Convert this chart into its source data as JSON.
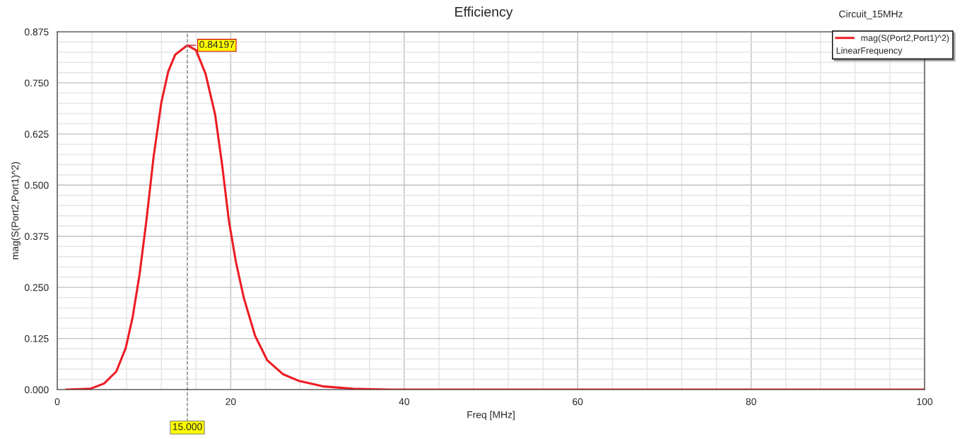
{
  "chart_data": {
    "type": "line",
    "title": "Efficiency",
    "xlabel": "Freq [MHz]",
    "ylabel": "mag(S(Port2,Port1)^2)",
    "x": [
      1,
      3.8,
      5.4,
      6.8,
      7.9,
      8.7,
      9.5,
      10.3,
      11.1,
      12.0,
      12.8,
      13.6,
      15.0,
      16.0,
      17.1,
      18.2,
      19.0,
      19.8,
      20.6,
      21.5,
      22.8,
      24.2,
      26.0,
      27.9,
      30.6,
      34.1,
      38.3,
      100
    ],
    "series": [
      {
        "name": "mag(S(Port2,Port1)^2)",
        "color": "#ed1c24",
        "values": [
          0,
          0.002,
          0.015,
          0.044,
          0.102,
          0.178,
          0.283,
          0.417,
          0.568,
          0.702,
          0.778,
          0.819,
          0.842,
          0.83,
          0.772,
          0.673,
          0.551,
          0.411,
          0.312,
          0.225,
          0.132,
          0.072,
          0.038,
          0.021,
          0.008,
          0.002,
          0.0,
          0.0
        ]
      }
    ],
    "xlim": [
      0,
      100
    ],
    "xticks": [
      0,
      20,
      40,
      60,
      80,
      100
    ],
    "ylim": [
      0,
      0.875
    ],
    "yticks": [
      {
        "value": 0,
        "label": "0.000"
      },
      {
        "value": 0.125,
        "label": "0.125"
      },
      {
        "value": 0.25,
        "label": "0.250"
      },
      {
        "value": 0.375,
        "label": "0.375"
      },
      {
        "value": 0.5,
        "label": "0.500"
      },
      {
        "value": 0.625,
        "label": "0.625"
      },
      {
        "value": 0.75,
        "label": "0.750"
      },
      {
        "value": 0.875,
        "label": "0.875"
      }
    ],
    "ref_lines": [
      {
        "axis": "x",
        "value": 15,
        "label": "15.000",
        "color": "#808080",
        "line_style": "dashed"
      }
    ],
    "annotations": [
      {
        "text": "0.84197",
        "x": 15,
        "y": 0.84197
      },
      "Circuit_15MHz",
      "LinearFrequency"
    ],
    "grid": true,
    "legend": "top right",
    "marker": "none",
    "line_style": "solid"
  }
}
